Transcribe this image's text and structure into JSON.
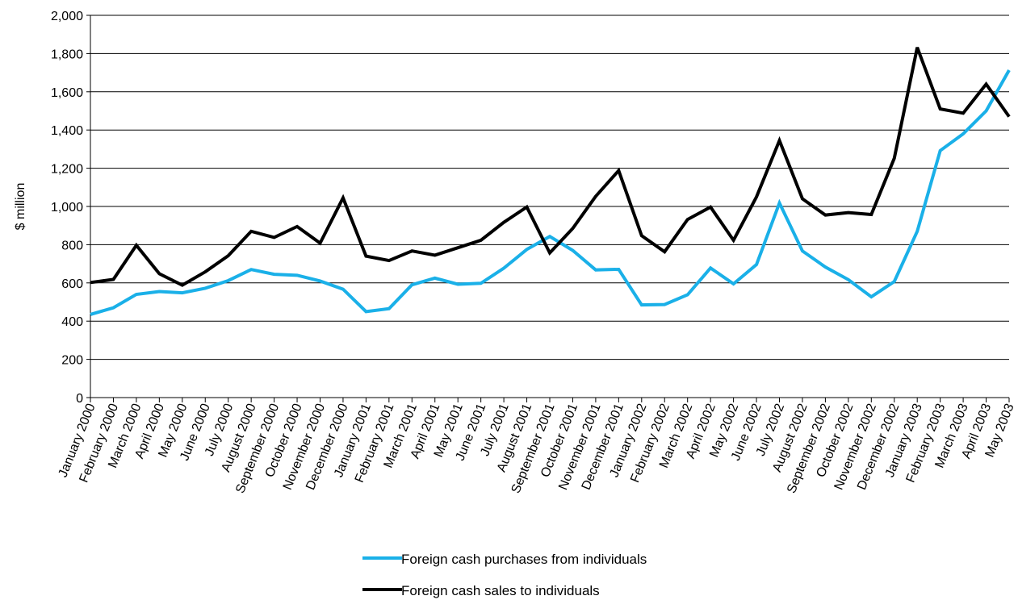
{
  "chart_data": {
    "type": "line",
    "title": "",
    "xlabel": "",
    "ylabel": "$ million",
    "ylim": [
      0,
      2000
    ],
    "yticks": [
      0,
      200,
      400,
      600,
      800,
      1000,
      1200,
      1400,
      1600,
      1800,
      2000
    ],
    "ytick_labels": [
      "0",
      "200",
      "400",
      "600",
      "800",
      "1,000",
      "1,200",
      "1,400",
      "1,600",
      "1,800",
      "2,000"
    ],
    "grid": "horizontal",
    "legend_position": "bottom",
    "categories": [
      "January 2000",
      "February 2000",
      "March 2000",
      "April 2000",
      "May 2000",
      "June 2000",
      "July 2000",
      "August 2000",
      "September 2000",
      "October 2000",
      "November 2000",
      "December 2000",
      "January 2001",
      "February 2001",
      "March 2001",
      "April 2001",
      "May 2001",
      "June 2001",
      "July 2001",
      "August 2001",
      "September 2001",
      "October 2001",
      "November 2001",
      "December 2001",
      "January 2002",
      "February 2002",
      "March 2002",
      "April 2002",
      "May 2002",
      "June 2002",
      "July 2002",
      "August 2002",
      "September 2002",
      "October 2002",
      "November 2002",
      "December 2002",
      "January 2003",
      "February 2003",
      "March 2003",
      "April 2003",
      "May 2003"
    ],
    "series": [
      {
        "name": "Foreign cash purchases from individuals",
        "color": "#1ab0e8",
        "values": [
          435,
          470,
          540,
          555,
          548,
          572,
          612,
          670,
          645,
          640,
          610,
          567,
          450,
          465,
          590,
          625,
          593,
          598,
          677,
          775,
          843,
          770,
          668,
          671,
          485,
          487,
          538,
          678,
          595,
          696,
          1018,
          767,
          683,
          617,
          527,
          607,
          870,
          1292,
          1380,
          1500,
          1713
        ]
      },
      {
        "name": "Foreign cash sales to individuals",
        "color": "#000000",
        "values": [
          602,
          618,
          797,
          648,
          588,
          658,
          742,
          870,
          838,
          895,
          808,
          1045,
          740,
          717,
          767,
          745,
          784,
          823,
          917,
          997,
          757,
          885,
          1053,
          1188,
          847,
          763,
          932,
          997,
          823,
          1050,
          1345,
          1040,
          955,
          968,
          958,
          1252,
          1832,
          1510,
          1488,
          1640,
          1470
        ]
      }
    ]
  }
}
